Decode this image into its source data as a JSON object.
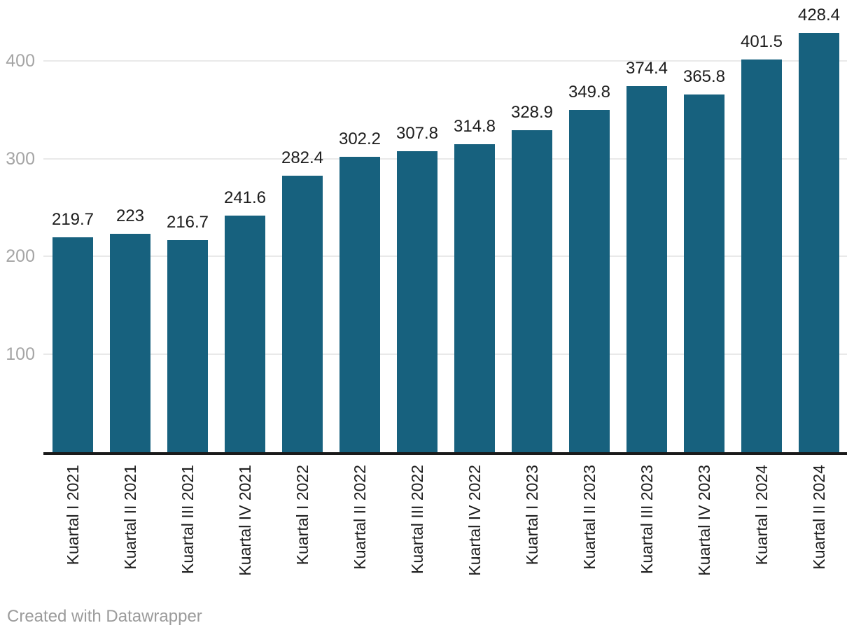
{
  "chart_data": {
    "type": "bar",
    "categories": [
      "Kuartal I 2021",
      "Kuartal II 2021",
      "Kuartal III 2021",
      "Kuartal IV 2021",
      "Kuartal I 2022",
      "Kuartal II 2022",
      "Kuartal III 2022",
      "Kuartal IV 2022",
      "Kuartal I 2023",
      "Kuartal II 2023",
      "Kuartal III 2023",
      "Kuartal IV 2023",
      "Kuartal I 2024",
      "Kuartal II 2024"
    ],
    "values": [
      219.7,
      223,
      216.7,
      241.6,
      282.4,
      302.2,
      307.8,
      314.8,
      328.9,
      349.8,
      374.4,
      365.8,
      401.5,
      428.4
    ],
    "value_labels": [
      "219.7",
      "223",
      "216.7",
      "241.6",
      "282.4",
      "302.2",
      "307.8",
      "314.8",
      "328.9",
      "349.8",
      "374.4",
      "365.8",
      "401.5",
      "428.4"
    ],
    "title": "",
    "xlabel": "",
    "ylabel": "",
    "ylim": [
      0,
      440
    ],
    "yticks": [
      100,
      200,
      300,
      400
    ],
    "grid": true,
    "legend": "none",
    "colors": {
      "bar": "#17617e",
      "value_label": "#1d1d1d",
      "x_tick_label": "#1d1d1d",
      "y_tick_label": "#a5a5a5",
      "gridline": "#e9e9e9",
      "axis_line": "#1a1a1a"
    }
  },
  "footer": {
    "attribution": "Created with Datawrapper",
    "attribution_color": "#9b9b9b"
  }
}
